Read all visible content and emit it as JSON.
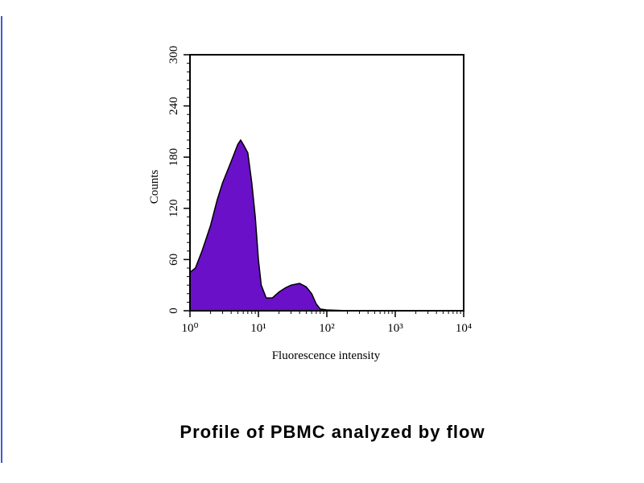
{
  "chart_data": {
    "type": "area",
    "caption": "Profile of PBMC analyzed by flow",
    "x_label": "Fluorescence intensity",
    "y_label": "Counts",
    "x": [
      1,
      1.2,
      1.5,
      2,
      2.5,
      3,
      4,
      5,
      5.5,
      6,
      7,
      8,
      9,
      10,
      11,
      13,
      16,
      20,
      25,
      30,
      40,
      50,
      60,
      70,
      80,
      100,
      200,
      1000,
      10000
    ],
    "values": [
      45,
      50,
      70,
      100,
      130,
      150,
      175,
      195,
      200,
      195,
      185,
      150,
      110,
      60,
      30,
      15,
      15,
      22,
      27,
      30,
      32,
      28,
      20,
      8,
      2,
      1,
      0,
      0,
      0
    ],
    "color": "#6a10c8",
    "xscale": "log",
    "xlim": [
      1,
      10000
    ],
    "xticks": [
      {
        "value": 1,
        "label": "10⁰"
      },
      {
        "value": 10,
        "label": "10¹"
      },
      {
        "value": 100,
        "label": "10²"
      },
      {
        "value": 1000,
        "label": "10³"
      },
      {
        "value": 10000,
        "label": "10⁴"
      }
    ],
    "ylim": [
      0,
      300
    ],
    "yticks": [
      0,
      60,
      120,
      180,
      240,
      300
    ]
  }
}
